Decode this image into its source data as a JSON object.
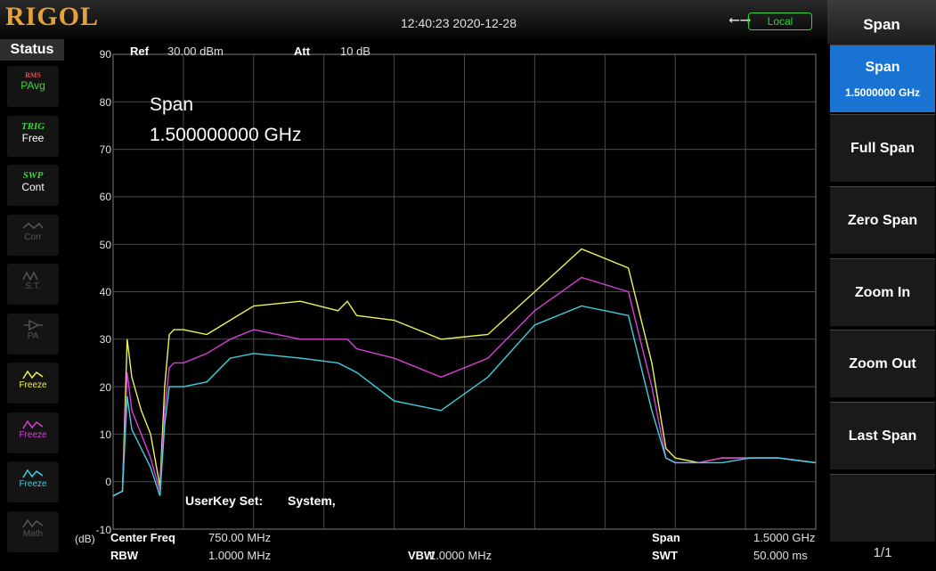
{
  "header": {
    "logo": "RIGOL",
    "datetime": "12:40:23 2020-12-28",
    "usb_icon": "usb-icon",
    "local_label": "Local"
  },
  "status_panel": {
    "title": "Status",
    "items": [
      {
        "top": "RMS",
        "label": "PAvg"
      },
      {
        "top": "TRIG",
        "label": "Free"
      },
      {
        "top": "SWP",
        "label": "Cont"
      },
      {
        "label": "Corr"
      },
      {
        "label": "S.T."
      },
      {
        "label": "PA"
      },
      {
        "label": "Freeze",
        "color": "#d8e23a"
      },
      {
        "label": "Freeze",
        "color": "#d63ad6"
      },
      {
        "label": "Freeze",
        "color": "#3ad6d6"
      },
      {
        "label": "Math"
      }
    ]
  },
  "plot": {
    "ref_label": "Ref",
    "ref_value": "30.00 dBm",
    "att_label": "Att",
    "att_value": "10 dB",
    "overlay_title": "Span",
    "overlay_value": "1.500000000 GHz",
    "userkey_label": "UserKey Set:",
    "userkey_value": "System,",
    "y_ticks": [
      "90",
      "80",
      "70",
      "60",
      "50",
      "40",
      "30",
      "20",
      "10",
      "0",
      "-10"
    ],
    "y_unit": "(dB)"
  },
  "bottom": {
    "center_freq_label": "Center Freq",
    "center_freq_value": "750.00 MHz",
    "rbw_label": "RBW",
    "rbw_value": "1.0000 MHz",
    "vbw_label": "VBW",
    "vbw_value": "1.0000 MHz",
    "span_label": "Span",
    "span_value": "1.5000 GHz",
    "swt_label": "SWT",
    "swt_value": "50.000 ms"
  },
  "menu": {
    "title": "Span",
    "buttons": [
      {
        "label": "Span",
        "value": "1.5000000 GHz"
      },
      {
        "label": "Full Span"
      },
      {
        "label": "Zero Span"
      },
      {
        "label": "Zoom In"
      },
      {
        "label": "Zoom Out"
      },
      {
        "label": "Last Span"
      }
    ],
    "page": "1/1"
  },
  "colors": {
    "trace_yellow": "#f0f05a",
    "trace_magenta": "#d840d8",
    "trace_cyan": "#40d0e0",
    "menu_active": "#1873d3"
  },
  "chart_data": {
    "type": "line",
    "ylim": [
      -10,
      90
    ],
    "xlim": [
      0,
      1.5
    ],
    "grid": true,
    "series": [
      {
        "color": "#f0f05a",
        "x": [
          0,
          0.02,
          0.03,
          0.04,
          0.06,
          0.08,
          0.1,
          0.11,
          0.12,
          0.13,
          0.15,
          0.2,
          0.25,
          0.3,
          0.4,
          0.48,
          0.5,
          0.52,
          0.6,
          0.7,
          0.8,
          0.9,
          1.0,
          1.1,
          1.15,
          1.18,
          1.2,
          1.25,
          1.3,
          1.36,
          1.38,
          1.42,
          1.5
        ],
        "y": [
          -3,
          -2,
          30,
          22,
          15,
          10,
          -1,
          20,
          31,
          32,
          32,
          31,
          34,
          37,
          38,
          36,
          38,
          35,
          34,
          30,
          31,
          40,
          49,
          45,
          25,
          7,
          5,
          4,
          5,
          5,
          5,
          5,
          4
        ]
      },
      {
        "color": "#d840d8",
        "x": [
          0,
          0.02,
          0.03,
          0.04,
          0.06,
          0.08,
          0.1,
          0.11,
          0.12,
          0.13,
          0.15,
          0.2,
          0.25,
          0.3,
          0.4,
          0.48,
          0.5,
          0.52,
          0.6,
          0.7,
          0.8,
          0.9,
          1.0,
          1.1,
          1.15,
          1.18,
          1.2,
          1.25,
          1.3,
          1.36,
          1.38,
          1.42,
          1.5
        ],
        "y": [
          -3,
          -2,
          23,
          15,
          10,
          5,
          -2,
          15,
          24,
          25,
          25,
          27,
          30,
          32,
          30,
          30,
          30,
          28,
          26,
          22,
          26,
          36,
          43,
          40,
          20,
          5,
          4,
          4,
          5,
          5,
          5,
          5,
          4
        ]
      },
      {
        "color": "#40d0e0",
        "x": [
          0,
          0.02,
          0.03,
          0.04,
          0.06,
          0.08,
          0.1,
          0.11,
          0.12,
          0.13,
          0.15,
          0.2,
          0.25,
          0.3,
          0.4,
          0.48,
          0.5,
          0.52,
          0.6,
          0.7,
          0.8,
          0.9,
          1.0,
          1.1,
          1.15,
          1.18,
          1.2,
          1.25,
          1.3,
          1.36,
          1.38,
          1.42,
          1.5
        ],
        "y": [
          -3,
          -2,
          18,
          11,
          7,
          3,
          -3,
          12,
          20,
          20,
          20,
          21,
          26,
          27,
          26,
          25,
          24,
          23,
          17,
          15,
          22,
          33,
          37,
          35,
          15,
          5,
          4,
          4,
          4,
          5,
          5,
          5,
          4
        ]
      }
    ]
  }
}
